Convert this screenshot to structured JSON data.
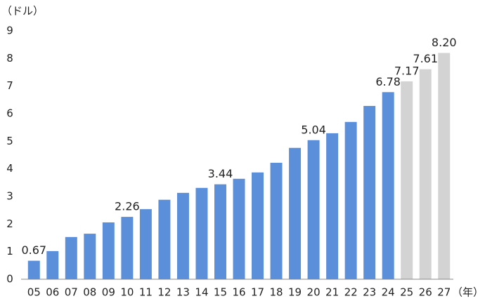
{
  "chart_data": {
    "type": "bar",
    "y_unit": "（ドル）",
    "x_unit": "（年）",
    "categories": [
      "05",
      "06",
      "07",
      "08",
      "09",
      "10",
      "11",
      "12",
      "13",
      "14",
      "15",
      "16",
      "17",
      "18",
      "19",
      "20",
      "21",
      "22",
      "23",
      "24",
      "25",
      "26",
      "27"
    ],
    "values": [
      0.67,
      1.02,
      1.53,
      1.65,
      2.06,
      2.26,
      2.54,
      2.88,
      3.13,
      3.31,
      3.44,
      3.64,
      3.87,
      4.22,
      4.76,
      5.04,
      5.29,
      5.7,
      6.28,
      6.78,
      7.17,
      7.61,
      8.2
    ],
    "value_labels": [
      "0.67",
      null,
      null,
      null,
      null,
      "2.26",
      null,
      null,
      null,
      null,
      "3.44",
      null,
      null,
      null,
      null,
      "5.04",
      null,
      null,
      null,
      "6.78",
      "7.17",
      "7.61",
      "8.20"
    ],
    "colors": [
      "#5b8fd9",
      "#5b8fd9",
      "#5b8fd9",
      "#5b8fd9",
      "#5b8fd9",
      "#5b8fd9",
      "#5b8fd9",
      "#5b8fd9",
      "#5b8fd9",
      "#5b8fd9",
      "#5b8fd9",
      "#5b8fd9",
      "#5b8fd9",
      "#5b8fd9",
      "#5b8fd9",
      "#5b8fd9",
      "#5b8fd9",
      "#5b8fd9",
      "#5b8fd9",
      "#5b8fd9",
      "#d3d3d3",
      "#d3d3d3",
      "#d3d3d3"
    ],
    "ylim": [
      0,
      9
    ],
    "yticks": [
      0,
      1,
      2,
      3,
      4,
      5,
      6,
      7,
      8,
      9
    ],
    "grid": false
  }
}
